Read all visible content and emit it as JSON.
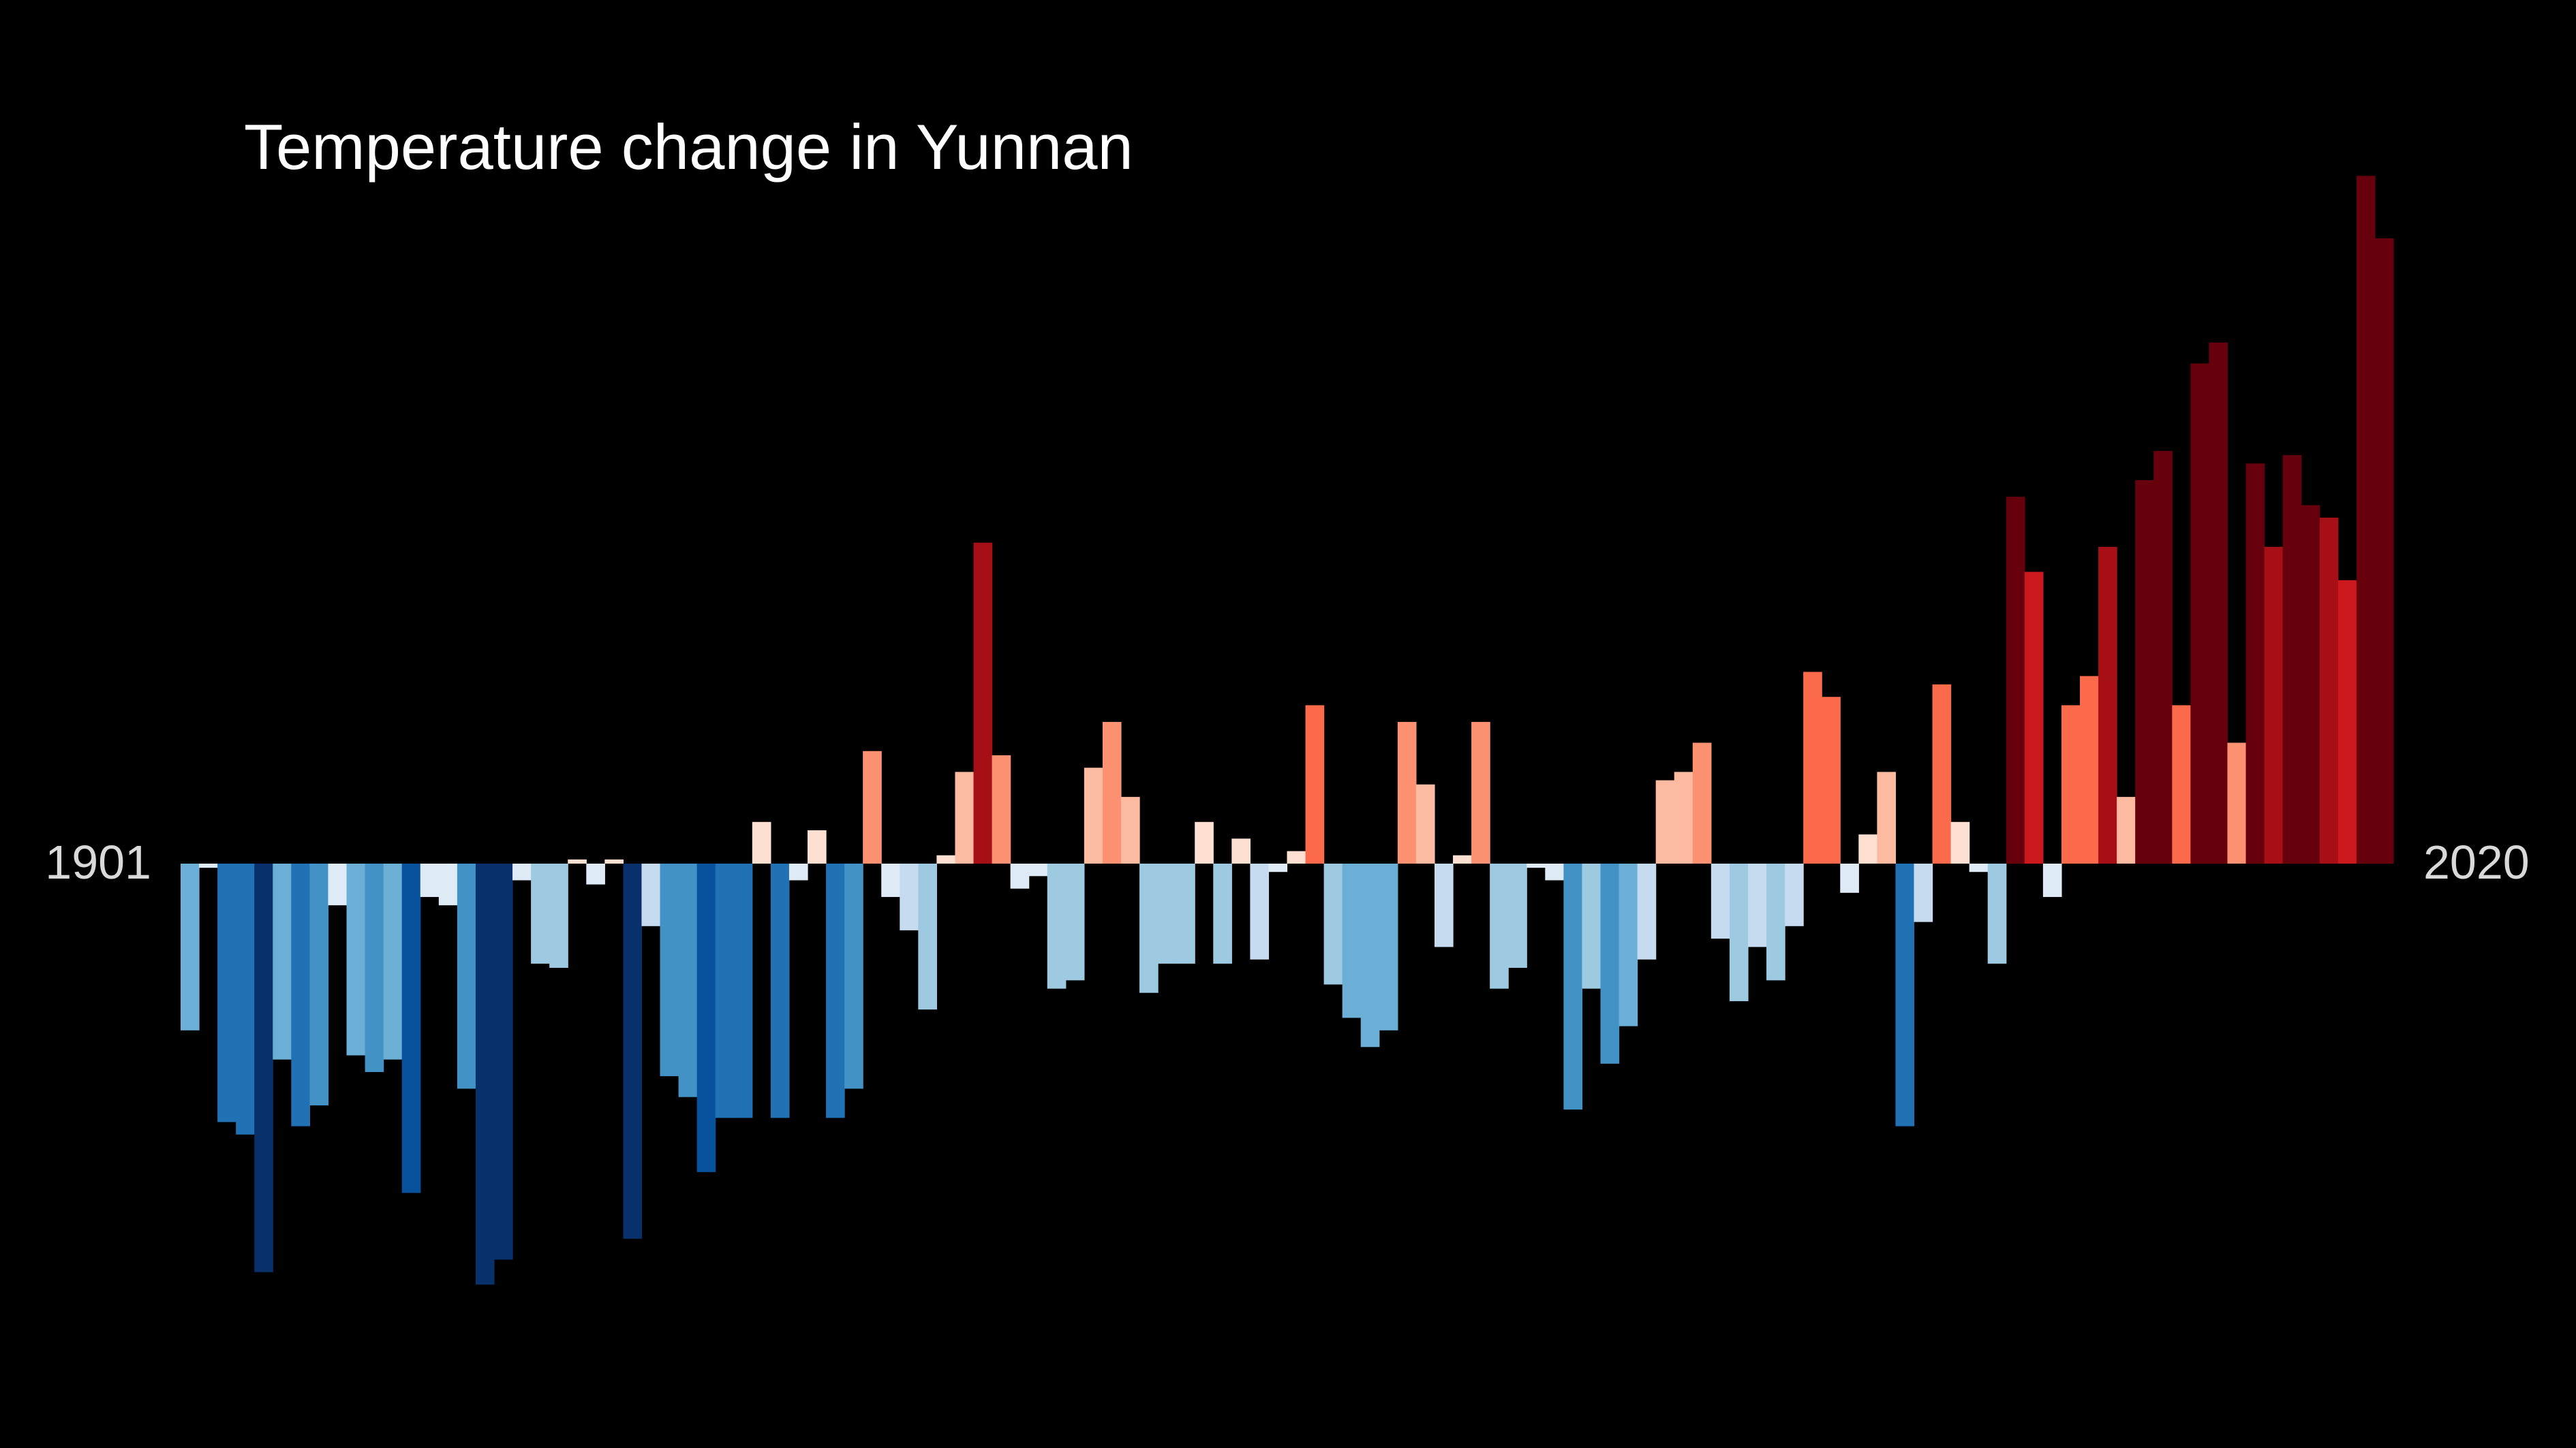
{
  "chart_data": {
    "type": "bar",
    "title": "Temperature change in Yunnan",
    "start_label": "1901",
    "end_label": "2020",
    "x_start": 1901,
    "x_end": 2020,
    "ylim": [
      -1.0,
      1.6
    ],
    "grid": false,
    "legend": "none",
    "colors": {
      "background": "#000000",
      "cold_scale": [
        "#08306b",
        "#08519c",
        "#2171b5",
        "#4292c6",
        "#6baed6",
        "#9ecae1",
        "#c6dbef",
        "#deebf7"
      ],
      "warm_scale": [
        "#fee0d2",
        "#fcbba1",
        "#fc9272",
        "#fb6a4a",
        "#ef3b2c",
        "#cb181d",
        "#a50f15",
        "#67000d"
      ]
    },
    "x": [
      1901,
      1902,
      1903,
      1904,
      1905,
      1906,
      1907,
      1908,
      1909,
      1910,
      1911,
      1912,
      1913,
      1914,
      1915,
      1916,
      1917,
      1918,
      1919,
      1920,
      1921,
      1922,
      1923,
      1924,
      1925,
      1926,
      1927,
      1928,
      1929,
      1930,
      1931,
      1932,
      1933,
      1934,
      1935,
      1936,
      1937,
      1938,
      1939,
      1940,
      1941,
      1942,
      1943,
      1944,
      1945,
      1946,
      1947,
      1948,
      1949,
      1950,
      1951,
      1952,
      1953,
      1954,
      1955,
      1956,
      1957,
      1958,
      1959,
      1960,
      1961,
      1962,
      1963,
      1964,
      1965,
      1966,
      1967,
      1968,
      1969,
      1970,
      1971,
      1972,
      1973,
      1974,
      1975,
      1976,
      1977,
      1978,
      1979,
      1980,
      1981,
      1982,
      1983,
      1984,
      1985,
      1986,
      1987,
      1988,
      1989,
      1990,
      1991,
      1992,
      1993,
      1994,
      1995,
      1996,
      1997,
      1998,
      1999,
      2000,
      2001,
      2002,
      2003,
      2004,
      2005,
      2006,
      2007,
      2008,
      2009,
      2010,
      2011,
      2012,
      2013,
      2014,
      2015,
      2016,
      2017,
      2018,
      2019,
      2020
    ],
    "values": [
      -0.4,
      -0.01,
      -0.62,
      -0.65,
      -0.98,
      -0.47,
      -0.63,
      -0.58,
      -0.1,
      -0.46,
      -0.5,
      -0.47,
      -0.79,
      -0.08,
      -0.1,
      -0.54,
      -1.01,
      -0.95,
      -0.04,
      -0.24,
      -0.25,
      0.01,
      -0.05,
      0.01,
      -0.9,
      -0.15,
      -0.51,
      -0.56,
      -0.74,
      -0.61,
      -0.61,
      0.1,
      -0.61,
      -0.04,
      0.08,
      -0.61,
      -0.54,
      0.27,
      -0.08,
      -0.16,
      -0.35,
      0.02,
      0.22,
      0.77,
      0.26,
      -0.06,
      -0.03,
      -0.3,
      -0.28,
      0.23,
      0.34,
      0.16,
      -0.31,
      -0.24,
      -0.24,
      0.1,
      -0.24,
      0.06,
      -0.23,
      -0.02,
      0.03,
      0.38,
      -0.29,
      -0.37,
      -0.44,
      -0.4,
      0.34,
      0.19,
      -0.2,
      0.02,
      0.34,
      -0.3,
      -0.25,
      -0.01,
      -0.04,
      -0.59,
      -0.3,
      -0.48,
      -0.39,
      -0.23,
      0.2,
      0.22,
      0.29,
      -0.18,
      -0.33,
      -0.2,
      -0.28,
      -0.15,
      0.46,
      0.4,
      -0.07,
      0.07,
      0.22,
      -0.63,
      -0.14,
      0.43,
      0.1,
      -0.02,
      -0.24,
      0.88,
      0.7,
      -0.08,
      0.38,
      0.45,
      0.76,
      0.16,
      0.92,
      0.99,
      0.38,
      1.2,
      1.25,
      0.29,
      0.96,
      0.76,
      0.98,
      0.86,
      0.83,
      0.68,
      1.65,
      1.5
    ]
  }
}
